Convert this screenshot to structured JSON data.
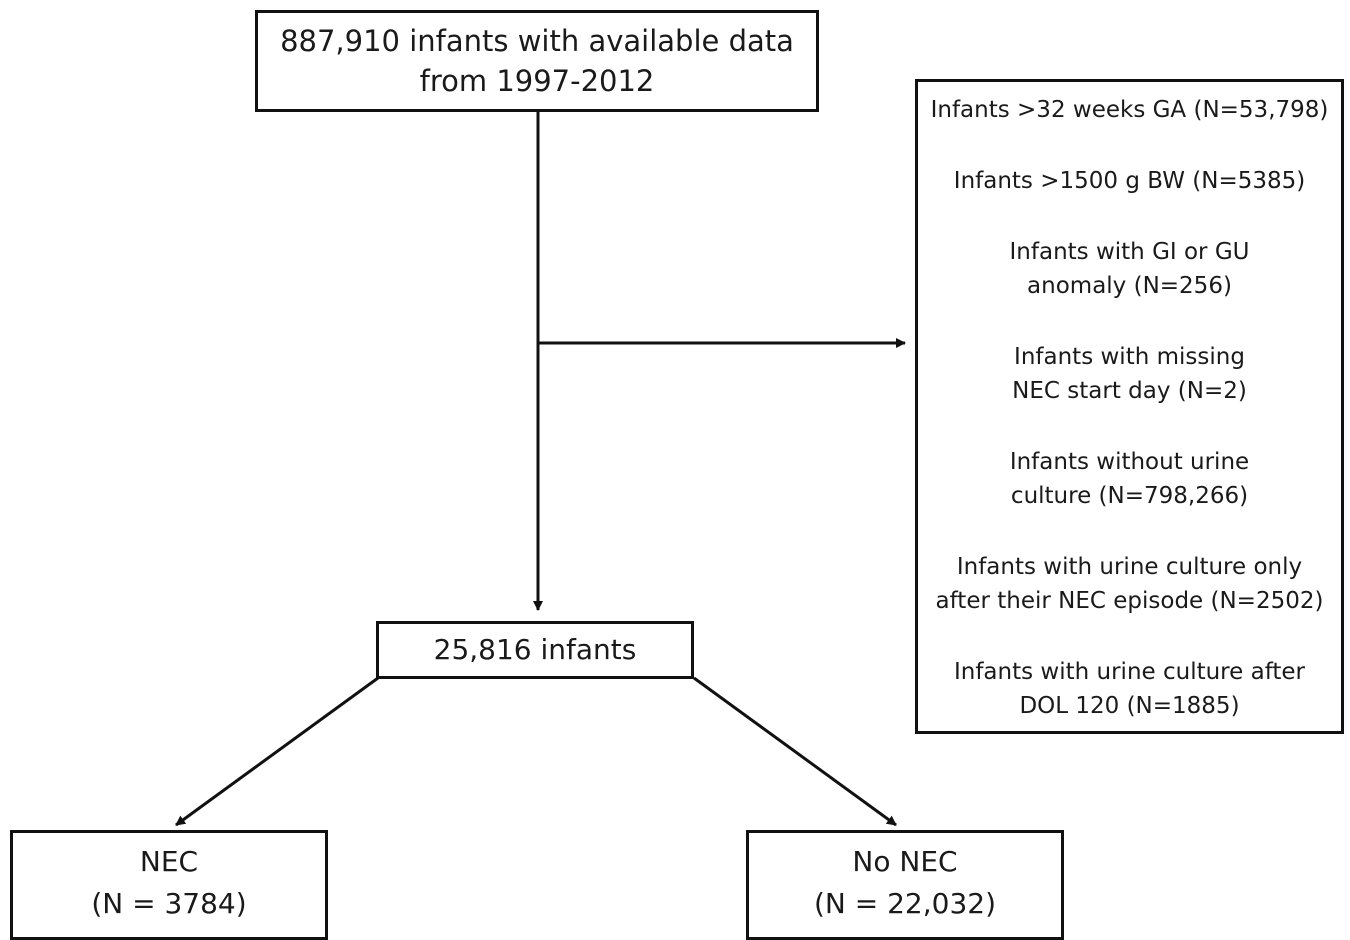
{
  "flowchart": {
    "top_box": {
      "lines": [
        "887,910 infants with available data",
        "from 1997-2012"
      ]
    },
    "exclusions": [
      {
        "lines": [
          "Infants >32 weeks GA (N=53,798)"
        ]
      },
      {
        "lines": [
          "Infants >1500 g BW (N=5385)"
        ]
      },
      {
        "lines": [
          "Infants with GI or GU",
          "anomaly (N=256)"
        ]
      },
      {
        "lines": [
          "Infants with missing",
          "NEC start day (N=2)"
        ]
      },
      {
        "lines": [
          "Infants without urine",
          "culture (N=798,266)"
        ]
      },
      {
        "lines": [
          "Infants with urine culture only",
          "after their NEC episode (N=2502)"
        ]
      },
      {
        "lines": [
          "Infants with urine culture after",
          "DOL 120 (N=1885)"
        ]
      }
    ],
    "middle_box": {
      "label": "25,816 infants"
    },
    "nec_box": {
      "lines": [
        "NEC",
        "(N = 3784)"
      ]
    },
    "no_nec_box": {
      "lines": [
        "No NEC",
        "(N = 22,032)"
      ]
    },
    "colors": {
      "stroke": "#111111",
      "text": "#1a1a1a",
      "background": "#ffffff"
    }
  }
}
